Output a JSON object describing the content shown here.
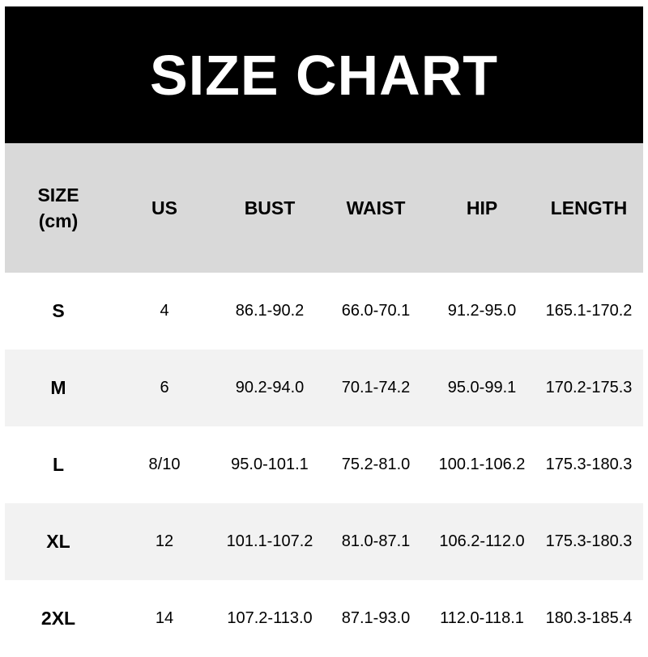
{
  "title": "SIZE CHART",
  "headers": [
    "SIZE\n(cm)",
    "US",
    "BUST",
    "WAIST",
    "HIP",
    "LENGTH"
  ],
  "header_size_line1": "SIZE",
  "header_size_line2": "(cm)",
  "rows": [
    [
      "S",
      "4",
      "86.1-90.2",
      "66.0-70.1",
      "91.2-95.0",
      "165.1-170.2"
    ],
    [
      "M",
      "6",
      "90.2-94.0",
      "70.1-74.2",
      "95.0-99.1",
      "170.2-175.3"
    ],
    [
      "L",
      "8/10",
      "95.0-101.1",
      "75.2-81.0",
      "100.1-106.2",
      "175.3-180.3"
    ],
    [
      "XL",
      "12",
      "101.1-107.2",
      "81.0-87.1",
      "106.2-112.0",
      "175.3-180.3"
    ],
    [
      "2XL",
      "14",
      "107.2-113.0",
      "87.1-93.0",
      "112.0-118.1",
      "180.3-185.4"
    ]
  ],
  "colors": {
    "banner": "#000000",
    "header_row": "#d9d9d9",
    "stripe": "#f2f2f2"
  }
}
